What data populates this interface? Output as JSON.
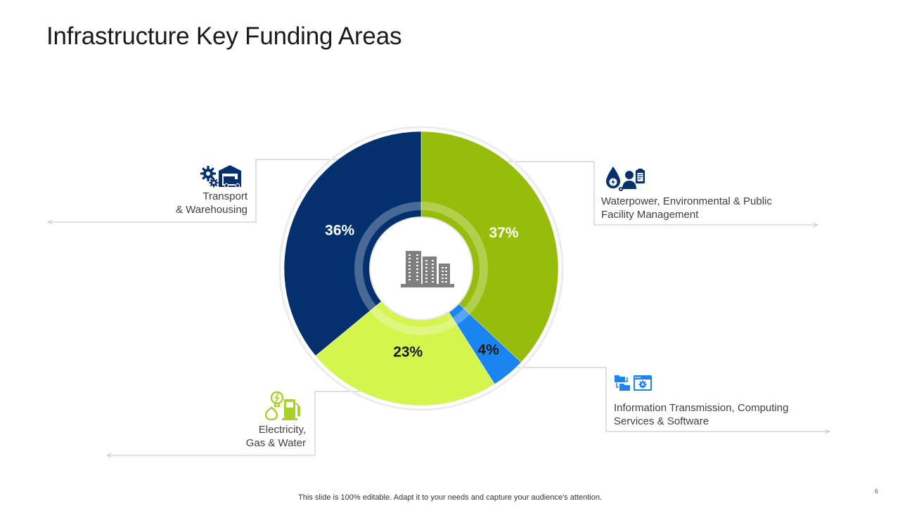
{
  "slide": {
    "title": "Infrastructure Key Funding Areas",
    "footer": "This slide is 100% editable. Adapt it to your needs and capture your audience's attention.",
    "page_number": "6"
  },
  "labels": {
    "transport": [
      "Transport",
      "& Warehousing"
    ],
    "waterpower": [
      "Waterpower, Environmental & Public",
      "Facility Management"
    ],
    "electricity": [
      "Electricity,",
      "Gas & Water"
    ],
    "information": [
      "Information Transmission, Computing",
      "Services & Software"
    ]
  },
  "icons": {
    "transport": "gear-warehouse-truck-icon",
    "waterpower": "water-drop-people-clipboard-icon",
    "electricity": "lightbulb-fuel-pump-icon",
    "information": "folders-browser-gear-icon",
    "center": "buildings-icon"
  },
  "colors": {
    "navy": "#04316e",
    "green": "#96bd0b",
    "lime": "#d4f44e",
    "blue": "#1a85f0",
    "electricity_icon": "#a8d22a",
    "leader_line": "#cccccc",
    "center_icon": "#7f7f7f"
  },
  "chart_data": {
    "type": "pie",
    "style": "donut",
    "categories": [
      "Waterpower, Environmental & Public Facility Management",
      "Information Transmission, Computing Services & Software",
      "Electricity, Gas & Water",
      "Transport & Warehousing"
    ],
    "values": [
      37,
      4,
      23,
      36
    ],
    "value_labels": [
      "37%",
      "4%",
      "23%",
      "36%"
    ],
    "colors": [
      "#96bd0b",
      "#1a85f0",
      "#d4f44e",
      "#04316e"
    ],
    "label_colors": [
      "#ffffff",
      "#1a1a1a",
      "#1a1a1a",
      "#ffffff"
    ],
    "start": "top, clockwise"
  }
}
